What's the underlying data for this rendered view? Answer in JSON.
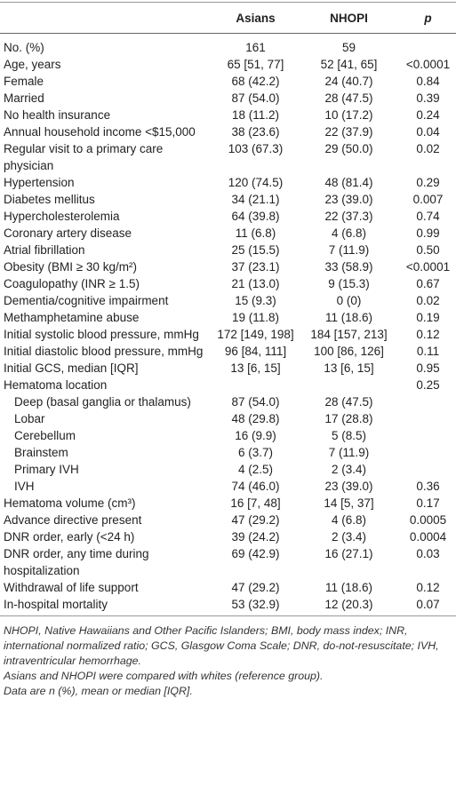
{
  "table": {
    "columns": [
      "Asians",
      "NHOPI",
      "p"
    ],
    "rows": [
      {
        "label": "No. (%)",
        "asians": "161",
        "nhopi": "59"
      },
      {
        "label": "Age, years",
        "asians": "65 [51, 77]",
        "nhopi": "52 [41, 65]",
        "p": "<0.0001"
      },
      {
        "label": "Female",
        "asians": "68 (42.2)",
        "nhopi": "24 (40.7)",
        "p": "0.84"
      },
      {
        "label": "Married",
        "asians": "87 (54.0)",
        "nhopi": "28 (47.5)",
        "p": "0.39"
      },
      {
        "label": "No health insurance",
        "asians": "18 (11.2)",
        "nhopi": "10 (17.2)",
        "p": "0.24"
      },
      {
        "label": "Annual household income <$15,000",
        "asians": "38 (23.6)",
        "nhopi": "22 (37.9)",
        "p": "0.04"
      },
      {
        "label": "Regular visit to a primary care physician",
        "asians": "103 (67.3)",
        "nhopi": "29 (50.0)",
        "p": "0.02"
      },
      {
        "label": "Hypertension",
        "asians": "120 (74.5)",
        "nhopi": "48 (81.4)",
        "p": "0.29"
      },
      {
        "label": "Diabetes mellitus",
        "asians": "34 (21.1)",
        "nhopi": "23 (39.0)",
        "p": "0.007"
      },
      {
        "label": "Hypercholesterolemia",
        "asians": "64 (39.8)",
        "nhopi": "22 (37.3)",
        "p": "0.74"
      },
      {
        "label": "Coronary artery disease",
        "asians": "11 (6.8)",
        "nhopi": "4 (6.8)",
        "p": "0.99"
      },
      {
        "label": "Atrial fibrillation",
        "asians": "25 (15.5)",
        "nhopi": "7 (11.9)",
        "p": "0.50"
      },
      {
        "label": "Obesity (BMI ≥ 30 kg/m²)",
        "asians": "37 (23.1)",
        "nhopi": "33 (58.9)",
        "p": "<0.0001"
      },
      {
        "label": "Coagulopathy (INR ≥ 1.5)",
        "asians": "21 (13.0)",
        "nhopi": "9 (15.3)",
        "p": "0.67"
      },
      {
        "label": "Dementia/cognitive impairment",
        "asians": "15 (9.3)",
        "nhopi": "0 (0)",
        "p": "0.02"
      },
      {
        "label": "Methamphetamine abuse",
        "asians": "19 (11.8)",
        "nhopi": "11 (18.6)",
        "p": "0.19"
      },
      {
        "label": "Initial systolic blood pressure, mmHg",
        "asians": "172 [149, 198]",
        "nhopi": "184 [157, 213]",
        "p": "0.12"
      },
      {
        "label": "Initial diastolic blood pressure, mmHg",
        "asians": "96 [84, 111]",
        "nhopi": "100 [86, 126]",
        "p": "0.11"
      },
      {
        "label": "Initial GCS, median [IQR]",
        "asians": "13 [6, 15]",
        "nhopi": "13 [6, 15]",
        "p": "0.95"
      },
      {
        "label": "Hematoma location",
        "p": "0.25",
        "subrows": [
          {
            "label": "Deep (basal ganglia or thalamus)",
            "asians": "87 (54.0)",
            "nhopi": "28 (47.5)"
          },
          {
            "label": "Lobar",
            "asians": "48 (29.8)",
            "nhopi": "17 (28.8)"
          },
          {
            "label": "Cerebellum",
            "asians": "16 (9.9)",
            "nhopi": "5 (8.5)"
          },
          {
            "label": "Brainstem",
            "asians": "6 (3.7)",
            "nhopi": "7 (11.9)"
          },
          {
            "label": "Primary IVH",
            "asians": "4 (2.5)",
            "nhopi": "2 (3.4)"
          },
          {
            "label": "IVH",
            "asians": "74 (46.0)",
            "nhopi": "23 (39.0)",
            "p": "0.36"
          }
        ]
      },
      {
        "label": "Hematoma volume (cm³)",
        "asians": "16 [7, 48]",
        "nhopi": "14 [5, 37]",
        "p": "0.17"
      },
      {
        "label": "Advance directive present",
        "asians": "47 (29.2)",
        "nhopi": "4 (6.8)",
        "p": "0.0005"
      },
      {
        "label": "DNR order, early (<24 h)",
        "asians": "39 (24.2)",
        "nhopi": "2 (3.4)",
        "p": "0.0004"
      },
      {
        "label": "DNR order, any time during hospitalization",
        "asians": "69 (42.9)",
        "nhopi": "16 (27.1)",
        "p": "0.03"
      },
      {
        "label": "Withdrawal of life support",
        "asians": "47 (29.2)",
        "nhopi": "11 (18.6)",
        "p": "0.12"
      },
      {
        "label": "In-hospital mortality",
        "asians": "53 (32.9)",
        "nhopi": "12 (20.3)",
        "p": "0.07"
      }
    ],
    "notes": [
      "NHOPI, Native Hawaiians and Other Pacific Islanders; BMI, body mass index; INR, international normalized ratio; GCS, Glasgow Coma Scale; DNR, do-not-resuscitate; IVH, intraventricular hemorrhage.",
      "Asians and NHOPI were compared with whites (reference group).",
      "Data are n (%), mean or median [IQR]."
    ]
  }
}
